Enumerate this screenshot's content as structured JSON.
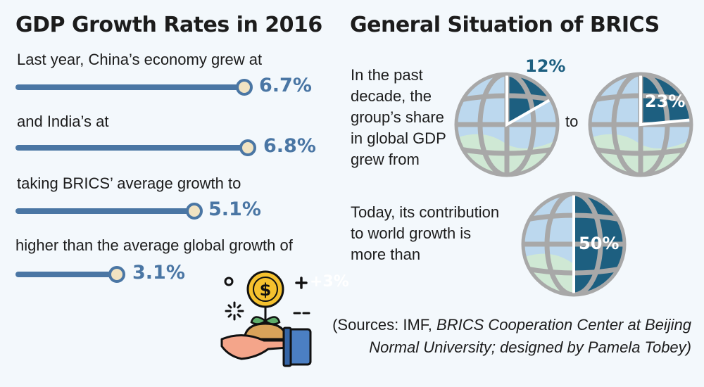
{
  "left": {
    "title": "GDP Growth Rates in 2016",
    "rows": [
      {
        "label": "Last year, China’s economy grew at",
        "value": "6.7%"
      },
      {
        "label": "and India’s at",
        "value": "6.8%"
      },
      {
        "label": "taking BRICS’ average growth to",
        "value": "5.1%"
      },
      {
        "label": "higher than the average global growth of",
        "value": "3.1%"
      }
    ],
    "icon_text": "+3%"
  },
  "right": {
    "title": "General Situation of BRICS",
    "share_text": [
      "In the past",
      "decade, the",
      "group’s share",
      "in global GDP",
      "grew from"
    ],
    "share_from": "12%",
    "to": "to",
    "share_to": "23%",
    "contribution_text": [
      "Today, its contribution",
      "to world growth is",
      "more than"
    ],
    "contribution": "50%"
  },
  "sources": {
    "line1_prefix": "(Sources: IMF, ",
    "line1_italic": "BRICS Cooperation Center at Beijing",
    "line2": "Normal University; designed by Pamela Tobey)"
  },
  "colors": {
    "accent": "#4a76a4",
    "dark_teal": "#1d5f80",
    "globe_light": "#bcd8ee",
    "globe_green": "#cfe8d4"
  }
}
